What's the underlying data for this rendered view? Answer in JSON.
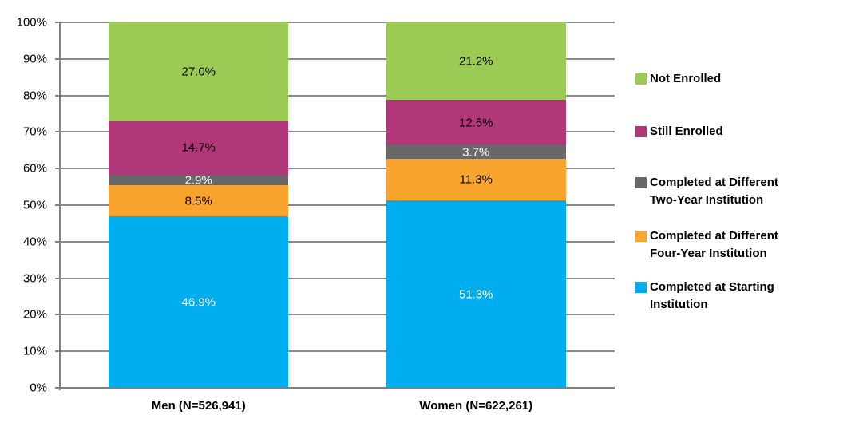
{
  "chart_data": {
    "type": "bar",
    "stacked": true,
    "orientation": "vertical",
    "title": "",
    "xlabel": "",
    "ylabel": "",
    "categories": [
      "Men (N=526,941)",
      "Women (N=622,261)"
    ],
    "series": [
      {
        "name": "Completed at Starting Institution",
        "color": "#00AEEF",
        "label_color": "#FFFFFF",
        "values": [
          46.9,
          51.3
        ],
        "labels": [
          "46.9%",
          "51.3%"
        ]
      },
      {
        "name": "Completed at Different Four-Year Institution",
        "color": "#F9A42C",
        "label_color": "#000000",
        "values": [
          8.5,
          11.3
        ],
        "labels": [
          "8.5%",
          "11.3%"
        ]
      },
      {
        "name": "Completed at Different Two-Year Institution",
        "color": "#686868",
        "label_color": "#FFFFFF",
        "values": [
          2.9,
          3.7
        ],
        "labels": [
          "2.9%",
          "3.7%"
        ]
      },
      {
        "name": "Still Enrolled",
        "color": "#B13878",
        "label_color": "#000000",
        "values": [
          14.7,
          12.5
        ],
        "labels": [
          "14.7%",
          "12.5%"
        ]
      },
      {
        "name": "Not Enrolled",
        "color": "#9BCA55",
        "label_color": "#000000",
        "values": [
          27.0,
          21.2
        ],
        "labels": [
          "27.0%",
          "21.2%"
        ]
      }
    ],
    "ylim": [
      0,
      100
    ],
    "yticks": [
      "0%",
      "10%",
      "20%",
      "30%",
      "40%",
      "50%",
      "60%",
      "70%",
      "80%",
      "90%",
      "100%"
    ],
    "grid": true,
    "legend_position": "right",
    "legend": [
      {
        "label": "Not Enrolled",
        "color": "#9BCA55"
      },
      {
        "label": "Still Enrolled",
        "color": "#B13878"
      },
      {
        "label": "Completed at Different Two-Year Institution",
        "color": "#686868"
      },
      {
        "label": "Completed at Different Four-Year Institution",
        "color": "#F9A42C"
      },
      {
        "label": "Completed at Starting Institution",
        "color": "#00AEEF"
      }
    ]
  },
  "colors": {
    "gridline": "#8A8A8A",
    "axis": "#808080",
    "background": "#FFFFFF",
    "tick_text": "#000000"
  }
}
